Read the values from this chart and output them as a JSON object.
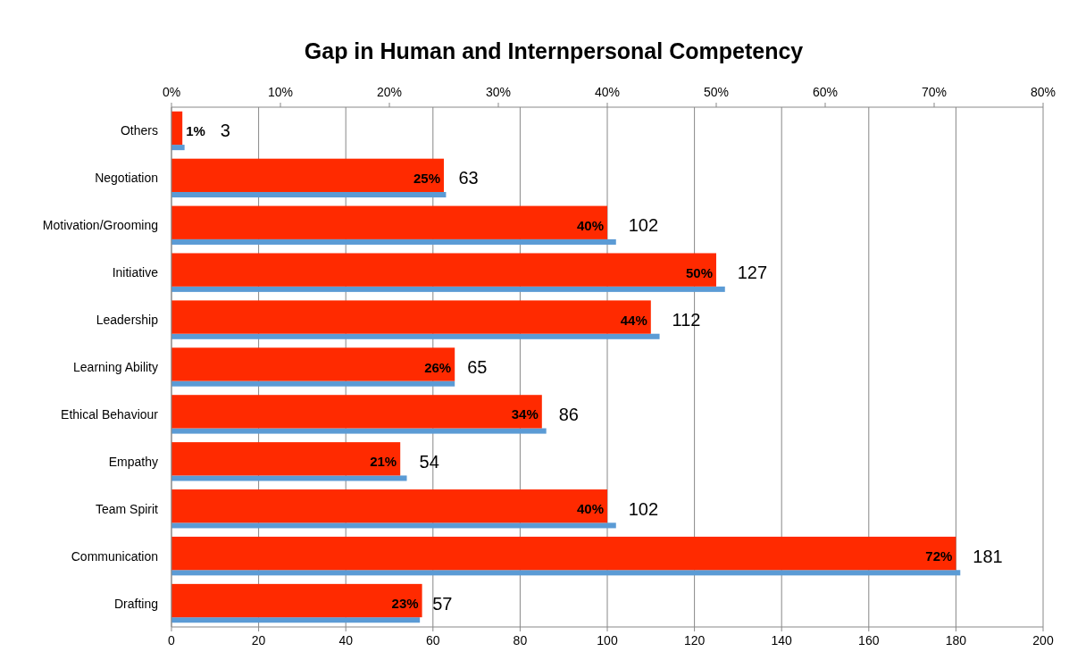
{
  "chart_data": {
    "type": "bar",
    "orientation": "horizontal",
    "title": "Gap in Human and Internpersonal Competency",
    "categories": [
      "Others",
      "Negotiation",
      "Motivation/Grooming",
      "Initiative",
      "Leadership",
      "Learning Ability",
      "Ethical Behaviour",
      "Empathy",
      "Team Spirit",
      "Communication",
      "Drafting"
    ],
    "series": [
      {
        "color": "#5b9bd5",
        "values": [
          3,
          63,
          102,
          127,
          112,
          65,
          86,
          54,
          102,
          181,
          57
        ],
        "value_labels": [
          "3",
          "63",
          "102",
          "127",
          "112",
          "65",
          "86",
          "54",
          "102",
          "181",
          "57"
        ]
      },
      {
        "color": "#ff2a00",
        "axis": "x2",
        "values": [
          1,
          25,
          40,
          50,
          44,
          26,
          34,
          21,
          40,
          72,
          23
        ],
        "value_labels": [
          "1%",
          "25%",
          "40%",
          "50%",
          "44%",
          "26%",
          "34%",
          "21%",
          "40%",
          "72%",
          "23%"
        ]
      }
    ],
    "xlim": [
      0,
      200
    ],
    "xticks": [
      0,
      20,
      40,
      60,
      80,
      100,
      120,
      140,
      160,
      180,
      200
    ],
    "x2lim": [
      0,
      80
    ],
    "x2ticks": [
      {
        "value": 0,
        "label": "0%"
      },
      {
        "value": 10,
        "label": "10%"
      },
      {
        "value": 20,
        "label": "20%"
      },
      {
        "value": 30,
        "label": "30%"
      },
      {
        "value": 40,
        "label": "40%"
      },
      {
        "value": 50,
        "label": "50%"
      },
      {
        "value": 60,
        "label": "60%"
      },
      {
        "value": 70,
        "label": "70%"
      },
      {
        "value": 80,
        "label": "80%"
      }
    ],
    "grid": "x"
  }
}
